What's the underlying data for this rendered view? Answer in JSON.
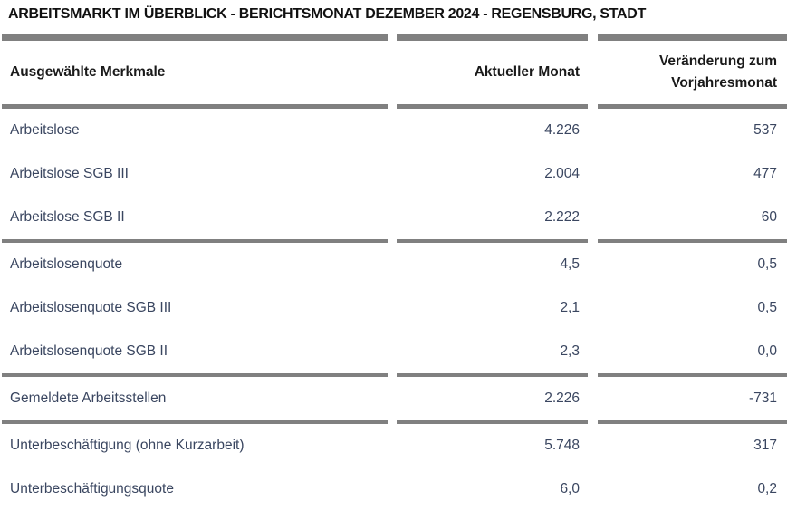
{
  "title": "ARBEITSMARKT IM ÜBERBLICK - BERICHTSMONAT DEZEMBER 2024 - REGENSBURG, STADT",
  "colors": {
    "rule_gray": "#808080",
    "title_text": "#111111",
    "header_text": "#1a1a1a",
    "row_text": "#3a4660"
  },
  "table": {
    "columns": {
      "feature": "Ausgewählte Merkmale",
      "current": "Aktueller Monat",
      "change_line1": "Veränderung zum",
      "change_line2": "Vorjahresmonat"
    },
    "groups": [
      {
        "rows": [
          {
            "label": "Arbeitslose",
            "current": "4.226",
            "change": "537"
          },
          {
            "label": "Arbeitslose SGB III",
            "current": "2.004",
            "change": "477"
          },
          {
            "label": "Arbeitslose SGB II",
            "current": "2.222",
            "change": "60"
          }
        ]
      },
      {
        "rows": [
          {
            "label": "Arbeitslosenquote",
            "current": "4,5",
            "change": "0,5"
          },
          {
            "label": "Arbeitslosenquote SGB III",
            "current": "2,1",
            "change": "0,5"
          },
          {
            "label": "Arbeitslosenquote SGB II",
            "current": "2,3",
            "change": "0,0"
          }
        ]
      },
      {
        "rows": [
          {
            "label": "Gemeldete Arbeitsstellen",
            "current": "2.226",
            "change": "-731"
          }
        ]
      },
      {
        "rows": [
          {
            "label": "Unterbeschäftigung (ohne Kurzarbeit)",
            "current": "5.748",
            "change": "317"
          },
          {
            "label": "Unterbeschäftigungsquote",
            "current": "6,0",
            "change": "0,2"
          }
        ]
      }
    ]
  }
}
